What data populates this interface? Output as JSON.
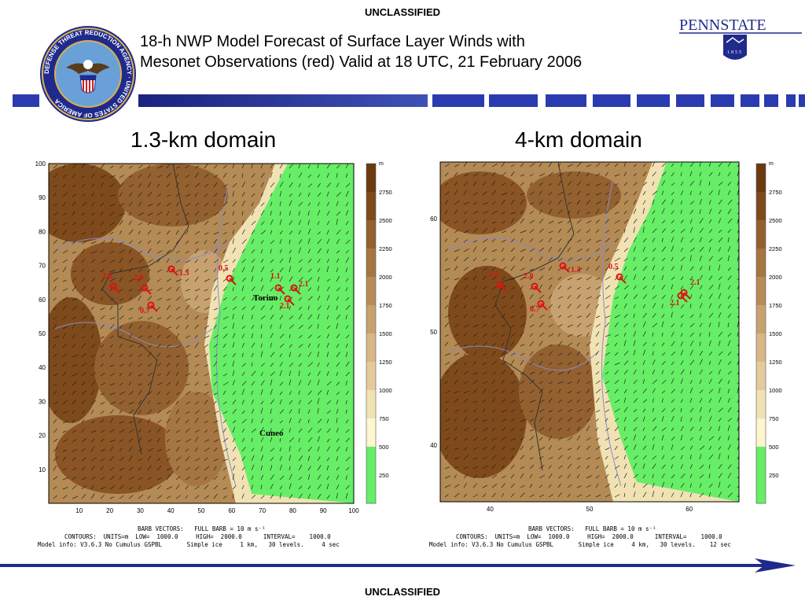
{
  "header": {
    "classification_top": "UNCLASSIFIED",
    "classification_bottom": "UNCLASSIFIED",
    "title_line1": "18-h NWP Model Forecast of Surface Layer Winds with",
    "title_line2": "Mesonet Observations (red) Valid at 18 UTC, 21 February 2006",
    "seal_text": "DEFENSE THREAT REDUCTION AGENCY · UNITED STATES OF AMERICA",
    "logo": {
      "name": "PENNSTATE",
      "year": "1855"
    }
  },
  "colors": {
    "navy": "#1f2a8c",
    "green": "#66ee66",
    "red": "#dd1111",
    "contour": "#8a8acc"
  },
  "panels": [
    {
      "title": "1.3-km domain",
      "x_ticks": [
        "10",
        "20",
        "30",
        "40",
        "50",
        "60",
        "70",
        "80",
        "90",
        "100"
      ],
      "y_ticks": [
        "10",
        "20",
        "30",
        "40",
        "50",
        "60",
        "70",
        "80",
        "90",
        "100"
      ],
      "obs": [
        {
          "label": "2.6"
        },
        {
          "label": "2.0"
        },
        {
          "label": "1.3"
        },
        {
          "label": "0.7"
        },
        {
          "label": "0.5"
        },
        {
          "label": "1.1"
        },
        {
          "label": "2.1"
        },
        {
          "label": "2.1"
        }
      ],
      "place_labels": [
        "Torino",
        "Cuneo"
      ],
      "info_barb": "BARB VECTORS:   FULL BARB = 10 m s⁻¹",
      "info_contours": "CONTOURS:  UNITS=m  LOW=  1000.0     HIGH=  2000.0      INTERVAL=    1000.0",
      "info_model": "Model info: V3.6.3 No Cumulus GSPBL       Simple ice     1 km,   30 levels.     4 sec"
    },
    {
      "title": "4-km domain",
      "x_ticks": [
        "40",
        "50",
        "60"
      ],
      "y_ticks": [
        "40",
        "50",
        "60"
      ],
      "obs": [
        {
          "label": "2.6"
        },
        {
          "label": "2.0"
        },
        {
          "label": "1.3"
        },
        {
          "label": "0.7"
        },
        {
          "label": "0.5"
        },
        {
          "label": "2.1"
        },
        {
          "label": "2.1"
        }
      ],
      "place_labels": [],
      "info_barb": "BARB VECTORS:   FULL BARB = 10 m s⁻¹",
      "info_contours": "CONTOURS:  UNITS=m  LOW=  1000.0     HIGH=  2000.0      INTERVAL=    1000.0",
      "info_model": "Model info: V3.6.3 No Cumulus GSPBL       Simple ice     4 km,   30 levels.    12 sec"
    }
  ],
  "colorbar": {
    "unit": "m",
    "labels": [
      "2750",
      "2500",
      "2250",
      "2000",
      "1750",
      "1500",
      "1250",
      "1000",
      "750",
      "500",
      "250"
    ],
    "colors": [
      "#6b3a0f",
      "#7f4a1b",
      "#93612f",
      "#a57642",
      "#b78c58",
      "#c7a26f",
      "#d7b886",
      "#e4cb9b",
      "#f1e2b4",
      "#fdf6cf",
      "#66ee66",
      "#66ee66"
    ]
  }
}
